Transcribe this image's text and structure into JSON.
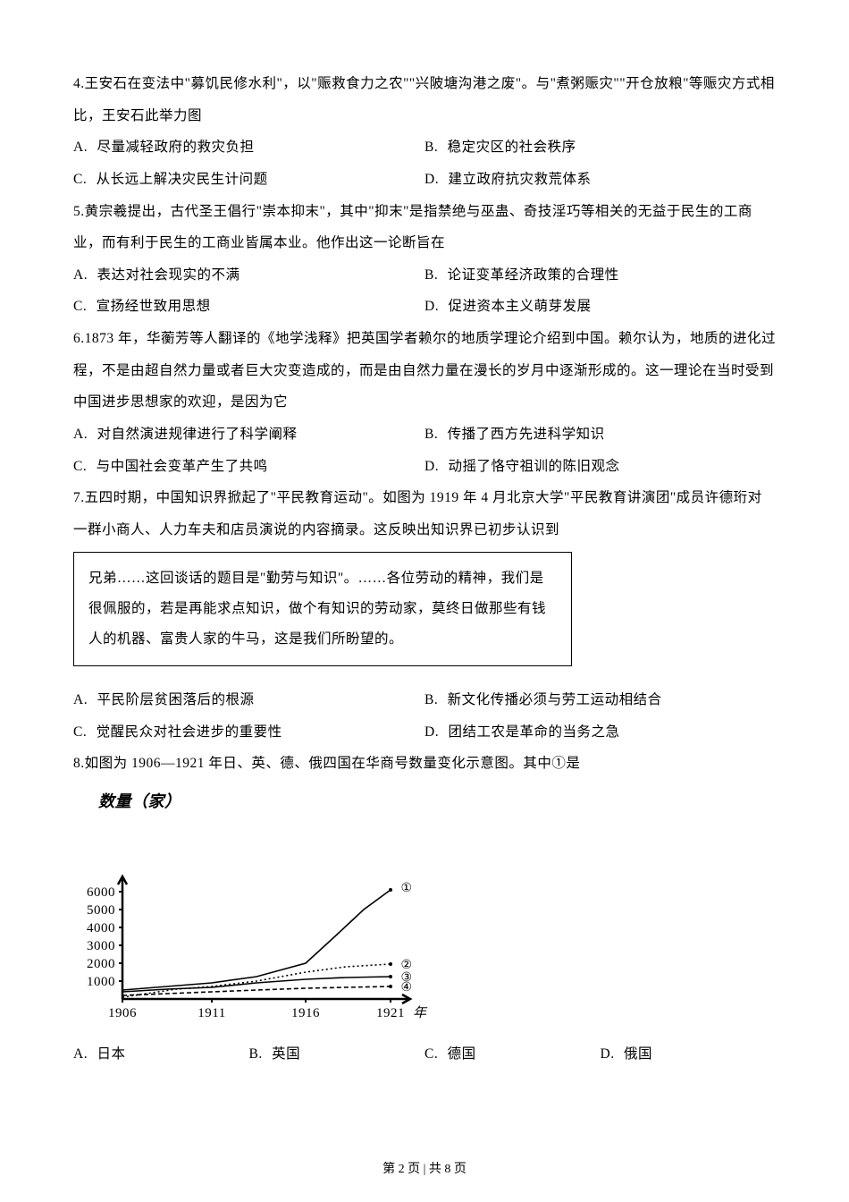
{
  "questions": {
    "q4": {
      "number": "4.",
      "text": "王安石在变法中\"募饥民修水利\"，以\"赈救食力之农\"\"兴陂塘沟港之废\"。与\"煮粥赈灾\"\"开仓放粮\"等赈灾方式相比，王安石此举力图",
      "choices": {
        "A": "尽量减轻政府的救灾负担",
        "B": "稳定灾区的社会秩序",
        "C": "从长远上解决灾民生计问题",
        "D": "建立政府抗灾救荒体系"
      }
    },
    "q5": {
      "number": "5.",
      "text": "黄宗羲提出，古代圣王倡行\"崇本抑末\"，其中\"抑末\"是指禁绝与巫蛊、奇技淫巧等相关的无益于民生的工商业，而有利于民生的工商业皆属本业。他作出这一论断旨在",
      "choices": {
        "A": "表达对社会现实的不满",
        "B": "论证变革经济政策的合理性",
        "C": "宣扬经世致用思想",
        "D": "促进资本主义萌芽发展"
      }
    },
    "q6": {
      "number": "6.",
      "text": "1873 年，华蘅芳等人翻译的《地学浅释》把英国学者赖尔的地质学理论介绍到中国。赖尔认为，地质的进化过程，不是由超自然力量或者巨大灾变造成的，而是由自然力量在漫长的岁月中逐渐形成的。这一理论在当时受到中国进步思想家的欢迎，是因为它",
      "choices": {
        "A": "对自然演进规律进行了科学阐释",
        "B": "传播了西方先进科学知识",
        "C": "与中国社会变革产生了共鸣",
        "D": "动摇了恪守祖训的陈旧观念"
      }
    },
    "q7": {
      "number": "7.",
      "text": "五四时期，中国知识界掀起了\"平民教育运动\"。如图为 1919 年 4 月北京大学\"平民教育讲演团\"成员许德珩对一群小商人、人力车夫和店员演说的内容摘录。这反映出知识界已初步认识到",
      "excerpt": "兄弟……这回谈话的题目是\"勤劳与知识\"。……各位劳动的精神，我们是很佩服的，若是再能求点知识，做个有知识的劳动家，莫终日做那些有钱人的机器、富贵人家的牛马，这是我们所盼望的。",
      "choices": {
        "A": "平民阶层贫困落后的根源",
        "B": "新文化传播必须与劳工运动相结合",
        "C": "觉醒民众对社会进步的重要性",
        "D": "团结工农是革命的当务之急"
      }
    },
    "q8": {
      "number": "8.",
      "text": "如图为 1906—1921 年日、英、德、俄四国在华商号数量变化示意图。其中①是",
      "choices": {
        "A": "日本",
        "B": "英国",
        "C": "德国",
        "D": "俄国"
      }
    }
  },
  "choice_labels": {
    "A": "A.",
    "B": "B.",
    "C": "C.",
    "D": "D."
  },
  "chart": {
    "type": "line",
    "title": "数量（家）",
    "xticks": [
      "1906",
      "1911",
      "1916",
      "1921"
    ],
    "xtick_positions": [
      0,
      100,
      205,
      300
    ],
    "xaxis_suffix": "年",
    "yticks": [
      "1000",
      "2000",
      "3000",
      "4000",
      "5000",
      "6000"
    ],
    "ytick_positions": [
      180,
      160,
      140,
      120,
      100,
      80
    ],
    "origin_y": 200,
    "series": [
      {
        "marker": "①",
        "dash": "none",
        "points": [
          [
            0,
            190
          ],
          [
            50,
            186
          ],
          [
            100,
            182
          ],
          [
            150,
            175
          ],
          [
            205,
            160
          ],
          [
            240,
            128
          ],
          [
            270,
            100
          ],
          [
            300,
            78
          ]
        ],
        "end_marker_pos": [
          318,
          75
        ]
      },
      {
        "marker": "②",
        "dash": "2,3",
        "points": [
          [
            0,
            198
          ],
          [
            60,
            189
          ],
          [
            100,
            186
          ],
          [
            150,
            180
          ],
          [
            205,
            170
          ],
          [
            250,
            164
          ],
          [
            300,
            161
          ]
        ],
        "end_marker_pos": [
          318,
          161
        ]
      },
      {
        "marker": "③",
        "dash": "none",
        "points": [
          [
            0,
            192
          ],
          [
            50,
            189
          ],
          [
            100,
            187
          ],
          [
            150,
            182
          ],
          [
            205,
            178
          ],
          [
            250,
            176
          ],
          [
            300,
            175
          ]
        ],
        "end_marker_pos": [
          318,
          175
        ]
      },
      {
        "marker": "④",
        "dash": "5,3",
        "points": [
          [
            0,
            196
          ],
          [
            50,
            194
          ],
          [
            100,
            192
          ],
          [
            150,
            190
          ],
          [
            205,
            188
          ],
          [
            250,
            187
          ],
          [
            300,
            186
          ]
        ],
        "end_marker_pos": [
          318,
          186
        ]
      }
    ],
    "axis_color": "#000000",
    "line_color": "#000000",
    "line_width": 1.6,
    "label_fontsize": 15,
    "tick_fontsize": 15
  },
  "footer": "第 2 页 | 共 8 页"
}
